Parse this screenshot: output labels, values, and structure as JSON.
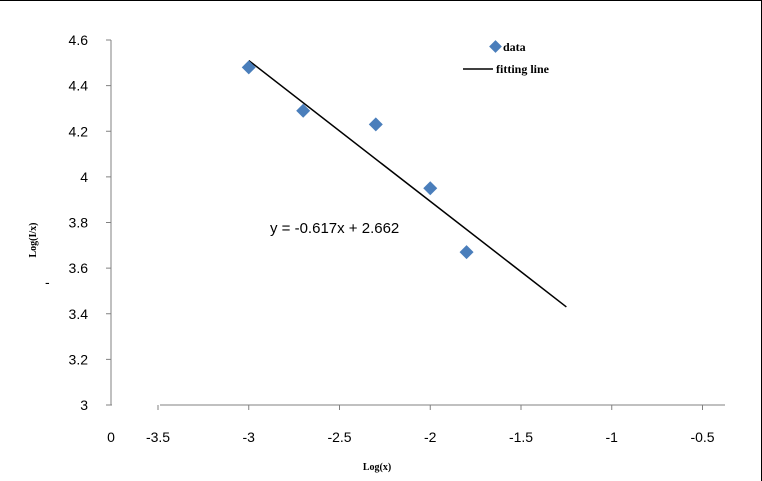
{
  "chart_data": {
    "type": "scatter",
    "title": "",
    "xlabel": "Log(x)",
    "ylabel": "Log(I/x)",
    "xlim": [
      -3.5,
      -0.5
    ],
    "ylim": [
      3,
      4.6
    ],
    "x_ticks": [
      "0",
      "-3.5",
      "-3",
      "-2.5",
      "-2",
      "-1.5",
      "-1",
      "-0.5"
    ],
    "y_ticks": [
      "3",
      "3.2",
      "3.4",
      "3.6",
      "3.8",
      "4",
      "4.2",
      "4.4",
      "4.6"
    ],
    "grid": false,
    "legend": "top-right",
    "series": [
      {
        "name": "data",
        "marker": "diamond",
        "color": "#4a7ebb",
        "x": [
          -3.0,
          -2.7,
          -2.3,
          -2.0,
          -1.8
        ],
        "y": [
          4.48,
          4.29,
          4.23,
          3.95,
          3.67
        ]
      },
      {
        "name": "fitting line",
        "color": "#000000",
        "x": [
          -3.0,
          -1.25
        ],
        "y": [
          4.51,
          3.43
        ]
      }
    ],
    "annotations": [
      "y = -0.617x + 2.662"
    ],
    "stray_mark": "-"
  }
}
